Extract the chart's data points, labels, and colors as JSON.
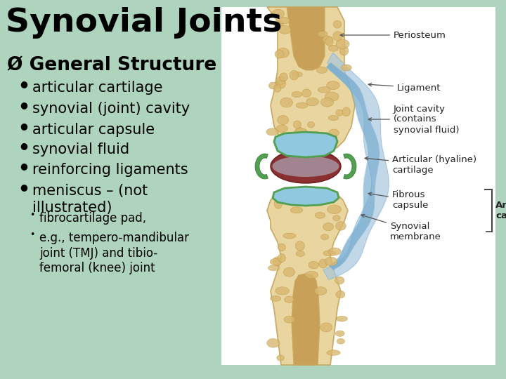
{
  "title": "Synovial Joints",
  "section_header": "Ø General Structure",
  "bullet_items": [
    "articular cartilage",
    "synovial (joint) cavity",
    "articular capsule",
    "synovial fluid",
    "reinforcing ligaments",
    "meniscus – (not\nillustrated)"
  ],
  "sub_bullets": [
    "fibrocartilage pad,",
    "e.g., tempero-mandibular\njoint (TMJ) and tibio-\nfemoral (knee) joint"
  ],
  "bg_color": "#aed4be",
  "img_bg_color": "#ffffff",
  "title_color": "#000000",
  "text_color": "#000000",
  "title_fontsize": 34,
  "header_fontsize": 19,
  "bullet_fontsize": 15,
  "sub_bullet_fontsize": 12,
  "bone_color": "#e8d5a0",
  "bone_edge_color": "#c8a860",
  "spongy_color": "#d8b870",
  "spongy_edge": "#c09840",
  "marrow_color": "#c8a058",
  "cart_color": "#90c8e0",
  "cart_edge": "#60a8c8",
  "green_border": "#50a050",
  "meniscus_color": "#8b3030",
  "ligament_color": "#a8c8e0",
  "label_color": "#222222",
  "arrow_color": "#555555"
}
